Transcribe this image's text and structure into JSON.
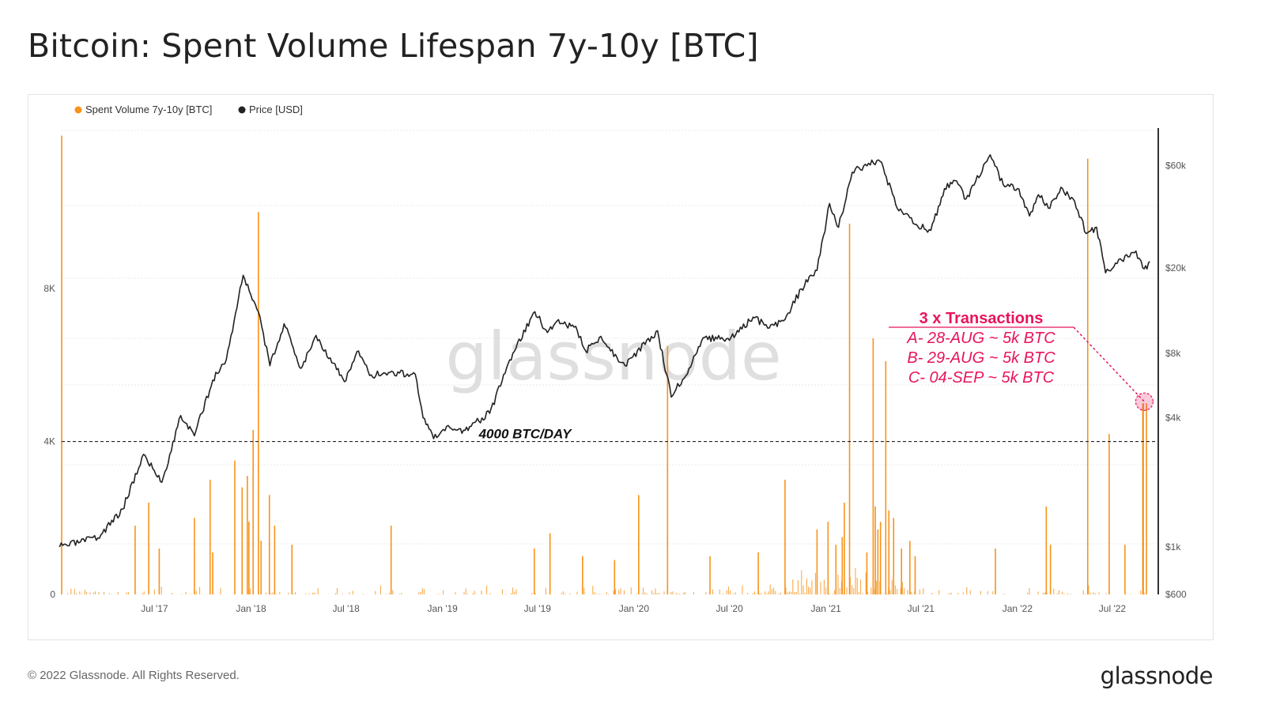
{
  "title": "Bitcoin: Spent Volume Lifespan 7y-10y [BTC]",
  "footer": {
    "copyright": "© 2022 Glassnode. All Rights Reserved.",
    "brand": "glassnode"
  },
  "watermark": "glassnode",
  "colors": {
    "volume": "#f7931a",
    "price": "#222222",
    "annotation": "#e8145c",
    "reference_line": "#222222"
  },
  "chart_data": {
    "type": "bar",
    "x_ticks": [
      "Jul '17",
      "Jan '18",
      "Jul '18",
      "Jan '19",
      "Jul '19",
      "Jan '20",
      "Jul '20",
      "Jan '21",
      "Jul '21",
      "Jan '22",
      "Jul '22"
    ],
    "y_left_ticks": [
      "0",
      "4K",
      "8K"
    ],
    "y_left_range": [
      0,
      12200
    ],
    "y_right_ticks": [
      "$600",
      "$1k",
      "$4k",
      "$8k",
      "$20k",
      "$60k"
    ],
    "y_right_scale": "log",
    "y_right_range": [
      600,
      90000
    ],
    "legend": [
      "Spent Volume 7y-10y [BTC]",
      "Price [USD]"
    ],
    "legend_position": "top-left",
    "grid": "horizontal dotted",
    "series": [
      {
        "name": "Spent Volume 7y-10y [BTC]",
        "type": "bar",
        "axis": "left",
        "spikes": [
          {
            "date": "2017-01-05",
            "value": 12000
          },
          {
            "date": "2017-05-25",
            "value": 1800
          },
          {
            "date": "2017-06-20",
            "value": 2400
          },
          {
            "date": "2017-07-10",
            "value": 1200
          },
          {
            "date": "2017-09-15",
            "value": 2000
          },
          {
            "date": "2017-10-15",
            "value": 3000
          },
          {
            "date": "2017-10-20",
            "value": 1100
          },
          {
            "date": "2017-12-01",
            "value": 3500
          },
          {
            "date": "2017-12-15",
            "value": 2800
          },
          {
            "date": "2017-12-25",
            "value": 3100
          },
          {
            "date": "2017-12-28",
            "value": 1900
          },
          {
            "date": "2018-01-05",
            "value": 4300
          },
          {
            "date": "2018-01-15",
            "value": 10000
          },
          {
            "date": "2018-01-20",
            "value": 1400
          },
          {
            "date": "2018-02-05",
            "value": 2600
          },
          {
            "date": "2018-02-15",
            "value": 1800
          },
          {
            "date": "2018-03-20",
            "value": 1300
          },
          {
            "date": "2018-09-25",
            "value": 1800
          },
          {
            "date": "2019-06-25",
            "value": 1200
          },
          {
            "date": "2019-07-25",
            "value": 1600
          },
          {
            "date": "2019-09-25",
            "value": 1000
          },
          {
            "date": "2019-11-25",
            "value": 900
          },
          {
            "date": "2020-01-10",
            "value": 2600
          },
          {
            "date": "2020-03-05",
            "value": 6500
          },
          {
            "date": "2020-05-25",
            "value": 1000
          },
          {
            "date": "2020-08-25",
            "value": 1100
          },
          {
            "date": "2020-10-15",
            "value": 3000
          },
          {
            "date": "2020-12-15",
            "value": 1700
          },
          {
            "date": "2021-01-05",
            "value": 1900
          },
          {
            "date": "2021-01-20",
            "value": 1300
          },
          {
            "date": "2021-02-01",
            "value": 1500
          },
          {
            "date": "2021-02-05",
            "value": 2400
          },
          {
            "date": "2021-02-15",
            "value": 9700
          },
          {
            "date": "2021-03-20",
            "value": 1100
          },
          {
            "date": "2021-04-01",
            "value": 6700
          },
          {
            "date": "2021-04-05",
            "value": 2300
          },
          {
            "date": "2021-04-10",
            "value": 1700
          },
          {
            "date": "2021-04-15",
            "value": 1900
          },
          {
            "date": "2021-04-25",
            "value": 6100
          },
          {
            "date": "2021-05-01",
            "value": 2200
          },
          {
            "date": "2021-05-10",
            "value": 2000
          },
          {
            "date": "2021-05-25",
            "value": 1200
          },
          {
            "date": "2021-06-10",
            "value": 1400
          },
          {
            "date": "2021-06-20",
            "value": 1000
          },
          {
            "date": "2021-11-20",
            "value": 1200
          },
          {
            "date": "2022-02-25",
            "value": 2300
          },
          {
            "date": "2022-03-05",
            "value": 1300
          },
          {
            "date": "2022-05-15",
            "value": 11400
          },
          {
            "date": "2022-06-25",
            "value": 4200
          },
          {
            "date": "2022-07-25",
            "value": 1300
          },
          {
            "date": "2022-08-28",
            "value": 5000
          },
          {
            "date": "2022-08-29",
            "value": 5000
          },
          {
            "date": "2022-09-04",
            "value": 5000
          }
        ]
      },
      {
        "name": "Price [USD]",
        "type": "line",
        "axis": "right",
        "points": [
          {
            "date": "2017-01-01",
            "value": 1000
          },
          {
            "date": "2017-03-15",
            "value": 1100
          },
          {
            "date": "2017-05-01",
            "value": 1500
          },
          {
            "date": "2017-06-10",
            "value": 2700
          },
          {
            "date": "2017-07-15",
            "value": 2000
          },
          {
            "date": "2017-08-20",
            "value": 4100
          },
          {
            "date": "2017-09-15",
            "value": 3300
          },
          {
            "date": "2017-10-20",
            "value": 6000
          },
          {
            "date": "2017-11-15",
            "value": 7500
          },
          {
            "date": "2017-12-17",
            "value": 18500
          },
          {
            "date": "2018-01-15",
            "value": 12500
          },
          {
            "date": "2018-02-06",
            "value": 7000
          },
          {
            "date": "2018-03-05",
            "value": 11000
          },
          {
            "date": "2018-04-06",
            "value": 6800
          },
          {
            "date": "2018-05-05",
            "value": 9700
          },
          {
            "date": "2018-06-28",
            "value": 5900
          },
          {
            "date": "2018-07-25",
            "value": 8200
          },
          {
            "date": "2018-08-15",
            "value": 6300
          },
          {
            "date": "2018-09-20",
            "value": 6500
          },
          {
            "date": "2018-11-10",
            "value": 6400
          },
          {
            "date": "2018-11-25",
            "value": 4000
          },
          {
            "date": "2018-12-15",
            "value": 3200
          },
          {
            "date": "2019-01-15",
            "value": 3600
          },
          {
            "date": "2019-02-10",
            "value": 3500
          },
          {
            "date": "2019-04-01",
            "value": 4200
          },
          {
            "date": "2019-05-15",
            "value": 8000
          },
          {
            "date": "2019-06-26",
            "value": 12500
          },
          {
            "date": "2019-07-20",
            "value": 10000
          },
          {
            "date": "2019-08-10",
            "value": 11500
          },
          {
            "date": "2019-09-15",
            "value": 10200
          },
          {
            "date": "2019-10-01",
            "value": 8200
          },
          {
            "date": "2019-10-27",
            "value": 9500
          },
          {
            "date": "2019-12-15",
            "value": 7000
          },
          {
            "date": "2020-02-15",
            "value": 10200
          },
          {
            "date": "2020-03-12",
            "value": 5000
          },
          {
            "date": "2020-04-15",
            "value": 6800
          },
          {
            "date": "2020-05-15",
            "value": 9500
          },
          {
            "date": "2020-07-01",
            "value": 9200
          },
          {
            "date": "2020-08-15",
            "value": 11800
          },
          {
            "date": "2020-09-15",
            "value": 10500
          },
          {
            "date": "2020-10-15",
            "value": 11500
          },
          {
            "date": "2020-11-15",
            "value": 16000
          },
          {
            "date": "2020-12-15",
            "value": 19500
          },
          {
            "date": "2021-01-08",
            "value": 40000
          },
          {
            "date": "2021-01-25",
            "value": 31000
          },
          {
            "date": "2021-02-20",
            "value": 56000
          },
          {
            "date": "2021-03-14",
            "value": 60000
          },
          {
            "date": "2021-04-14",
            "value": 63000
          },
          {
            "date": "2021-05-20",
            "value": 37000
          },
          {
            "date": "2021-06-22",
            "value": 32000
          },
          {
            "date": "2021-07-20",
            "value": 30000
          },
          {
            "date": "2021-08-15",
            "value": 47000
          },
          {
            "date": "2021-09-07",
            "value": 51000
          },
          {
            "date": "2021-09-25",
            "value": 42000
          },
          {
            "date": "2021-11-10",
            "value": 67500
          },
          {
            "date": "2021-12-05",
            "value": 49000
          },
          {
            "date": "2022-01-01",
            "value": 47000
          },
          {
            "date": "2022-01-24",
            "value": 35000
          },
          {
            "date": "2022-02-10",
            "value": 44000
          },
          {
            "date": "2022-03-01",
            "value": 38000
          },
          {
            "date": "2022-03-28",
            "value": 47000
          },
          {
            "date": "2022-04-20",
            "value": 41000
          },
          {
            "date": "2022-05-12",
            "value": 29000
          },
          {
            "date": "2022-06-01",
            "value": 31000
          },
          {
            "date": "2022-06-18",
            "value": 19000
          },
          {
            "date": "2022-07-10",
            "value": 21000
          },
          {
            "date": "2022-08-15",
            "value": 24000
          },
          {
            "date": "2022-08-28",
            "value": 20000
          },
          {
            "date": "2022-09-05",
            "value": 19800
          },
          {
            "date": "2022-09-10",
            "value": 21500
          }
        ]
      }
    ],
    "reference_line": {
      "value": 4000,
      "label": "4000 BTC/DAY"
    },
    "annotations": [
      {
        "title": "3 x Transactions",
        "lines": [
          "A- 28-AUG ~ 5k BTC",
          "B- 29-AUG ~ 5k BTC",
          "C- 04-SEP ~ 5k BTC"
        ],
        "target_date": "2022-08-31",
        "target_value": 5000
      }
    ]
  }
}
